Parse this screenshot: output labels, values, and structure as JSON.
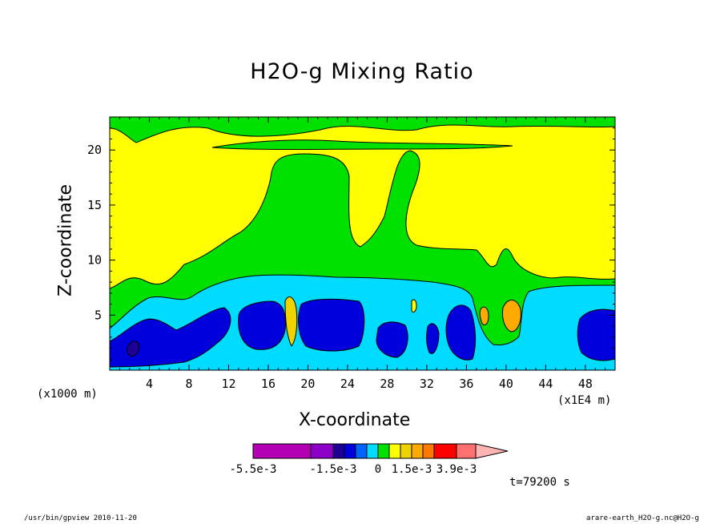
{
  "chart_data": {
    "type": "heatmap",
    "title": "H2O-g Mixing Ratio",
    "xlabel": "X-coordinate",
    "ylabel": "Z-coordinate",
    "x_unit": "(x1000 m)",
    "x_scale": "(x1E4 m)",
    "x_ticks": [
      4,
      8,
      12,
      16,
      20,
      24,
      28,
      32,
      36,
      40,
      44,
      48
    ],
    "y_ticks": [
      5,
      10,
      15,
      20
    ],
    "xlim": [
      0,
      51
    ],
    "ylim": [
      0,
      23
    ],
    "colorbar": {
      "colors": [
        "#b400b4",
        "#8c00c8",
        "#1e0096",
        "#0000dc",
        "#0064ff",
        "#00dcff",
        "#00e100",
        "#ffff00",
        "#f0d200",
        "#ffaa00",
        "#ff7800",
        "#ff0000",
        "#ff7070",
        "#ffb4b4"
      ],
      "labels": [
        "-5.5e-3",
        "-1.5e-3",
        "0",
        "1.5e-3",
        "3.9e-3"
      ]
    },
    "time": "t=79200 s"
  },
  "footer": {
    "left": "/usr/bin/gpview  2010-11-20",
    "right": "arare-earth_H2O-g.nc@H2O-g"
  }
}
